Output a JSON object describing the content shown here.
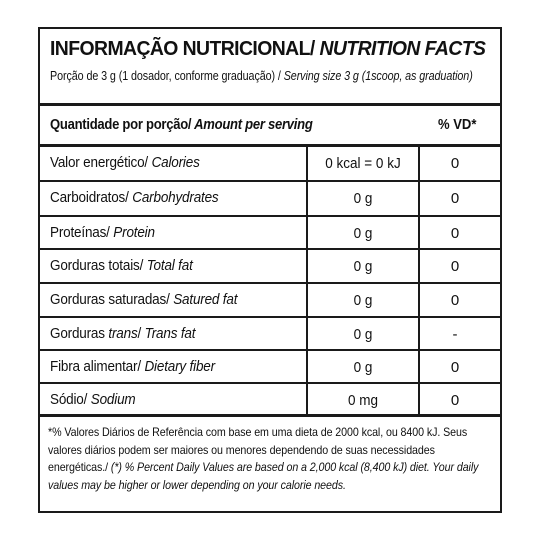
{
  "title": {
    "pt": "INFORMAÇÃO NUTRICIONAL/",
    "en": " NUTRITION FACTS"
  },
  "serving": {
    "pt": "Porção de 3 g  (1 dosador, conforme graduação) /",
    "en": " Serving size 3 g  (1scoop, as graduation)"
  },
  "header": {
    "pt": "Quantidade por porção/",
    "en": " Amount per serving",
    "vd": "% VD*"
  },
  "rows": [
    {
      "pt": "Valor energético/",
      "en": " Calories",
      "qty": "0 kcal = 0 kJ",
      "vd": "0"
    },
    {
      "pt": "Carboidratos/",
      "en": " Carbohydrates",
      "qty": "0 g",
      "vd": "0"
    },
    {
      "pt": "Proteínas/",
      "en": " Protein",
      "qty": "0 g",
      "vd": "0"
    },
    {
      "pt": "Gorduras totais/",
      "en": " Total fat",
      "qty": "0 g",
      "vd": "0"
    },
    {
      "pt": "Gorduras saturadas/",
      "en": " Satured fat",
      "qty": "0 g",
      "vd": "0"
    },
    {
      "pt": "Gorduras ",
      "pt_italic": "trans",
      "pt_end": "/",
      "en": " Trans fat",
      "qty": "0 g",
      "vd": "-"
    },
    {
      "pt": "Fibra alimentar/",
      "en": " Dietary fiber",
      "qty": "0 g",
      "vd": "0"
    },
    {
      "pt": "Sódio/",
      "en": " Sodium",
      "qty": "0 mg",
      "vd": "0"
    }
  ],
  "footnote": {
    "pt": "*% Valores Diários de Referência com base em uma dieta de 2000 kcal, ou 8400 kJ. Seus valores diários podem ser maiores ou menores dependendo de suas necessidades energéticas./",
    "en": " (*) % Percent Daily Values are based on a 2,000 kcal (8,400 kJ) diet. Your daily values may be higher or lower depending on your calorie needs."
  }
}
